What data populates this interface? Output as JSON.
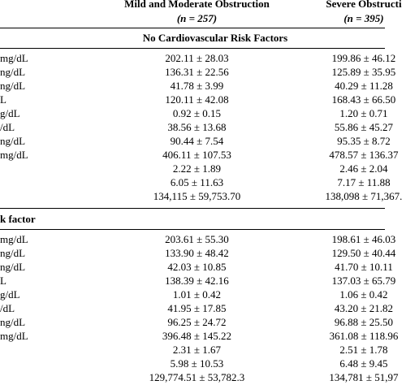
{
  "header": {
    "col1_title": "Mild and Moderate Obstruction",
    "col1_n": "(n = 257)",
    "col2_title": "Severe Obstructi",
    "col2_n": "(n = 395)"
  },
  "section1": {
    "title": "No Cardiovascular Risk Factors",
    "rows": [
      {
        "label": "mg/dL",
        "col1": "202.11 ± 28.03",
        "col2": "199.86 ± 46.12"
      },
      {
        "label": "ng/dL",
        "col1": "136.31 ± 22.56",
        "col2": "125.89 ± 35.95"
      },
      {
        "label": "ng/dL",
        "col1": "41.78 ± 3.99",
        "col2": "40.29 ± 11.28"
      },
      {
        "label": "L",
        "col1": "120.11 ± 42.08",
        "col2": "168.43 ± 66.50"
      },
      {
        "label": "g/dL",
        "col1": "0.92 ± 0.15",
        "col2": "1.20 ± 0.71"
      },
      {
        "label": "/dL",
        "col1": "38.56 ± 13.68",
        "col2": "55.86 ± 45.27"
      },
      {
        "label": "ng/dL",
        "col1": "90.44 ± 7.54",
        "col2": "95.35 ± 8.72"
      },
      {
        "label": "mg/dL",
        "col1": "406.11 ± 107.53",
        "col2": "478.57 ± 136.37"
      },
      {
        "label": "",
        "col1": "2.22 ± 1.89",
        "col2": "2.46 ± 2.04"
      },
      {
        "label": "",
        "col1": "6.05 ± 11.63",
        "col2": "7.17 ± 11.88"
      },
      {
        "label": "",
        "col1": "134,115 ± 59,753.70",
        "col2": "138,098 ± 71,367."
      }
    ]
  },
  "section2": {
    "title": "k factor",
    "rows": [
      {
        "label": "mg/dL",
        "col1": "203.61 ± 55.30",
        "col2": "198.61 ± 46.03"
      },
      {
        "label": "ng/dL",
        "col1": "133.90 ± 48.42",
        "col2": "129.50 ± 40.44"
      },
      {
        "label": "ng/dL",
        "col1": "42.03 ± 10.85",
        "col2": "41.70 ± 10.11"
      },
      {
        "label": "L",
        "col1": "138.39 ± 42.16",
        "col2": "137.03 ± 65.79"
      },
      {
        "label": "g/dL",
        "col1": "1.01 ± 0.42",
        "col2": "1.06 ± 0.42"
      },
      {
        "label": "/dL",
        "col1": "41.95 ± 17.85",
        "col2": "43.20 ± 21.82"
      },
      {
        "label": "ng/dL",
        "col1": "96.25 ± 24.72",
        "col2": "96.88 ± 25.50"
      },
      {
        "label": "mg/dL",
        "col1": "396.48 ± 145.22",
        "col2": "361.08 ± 118.96"
      },
      {
        "label": "",
        "col1": "2.31 ± 1.67",
        "col2": "2.51 ± 1.78"
      },
      {
        "label": "",
        "col1": "5.98 ± 10.53",
        "col2": "6.48 ± 9.45"
      },
      {
        "label": "",
        "col1": "129,774.51 ± 53,782.3",
        "col2": "134,781 ± 51,97"
      }
    ]
  }
}
